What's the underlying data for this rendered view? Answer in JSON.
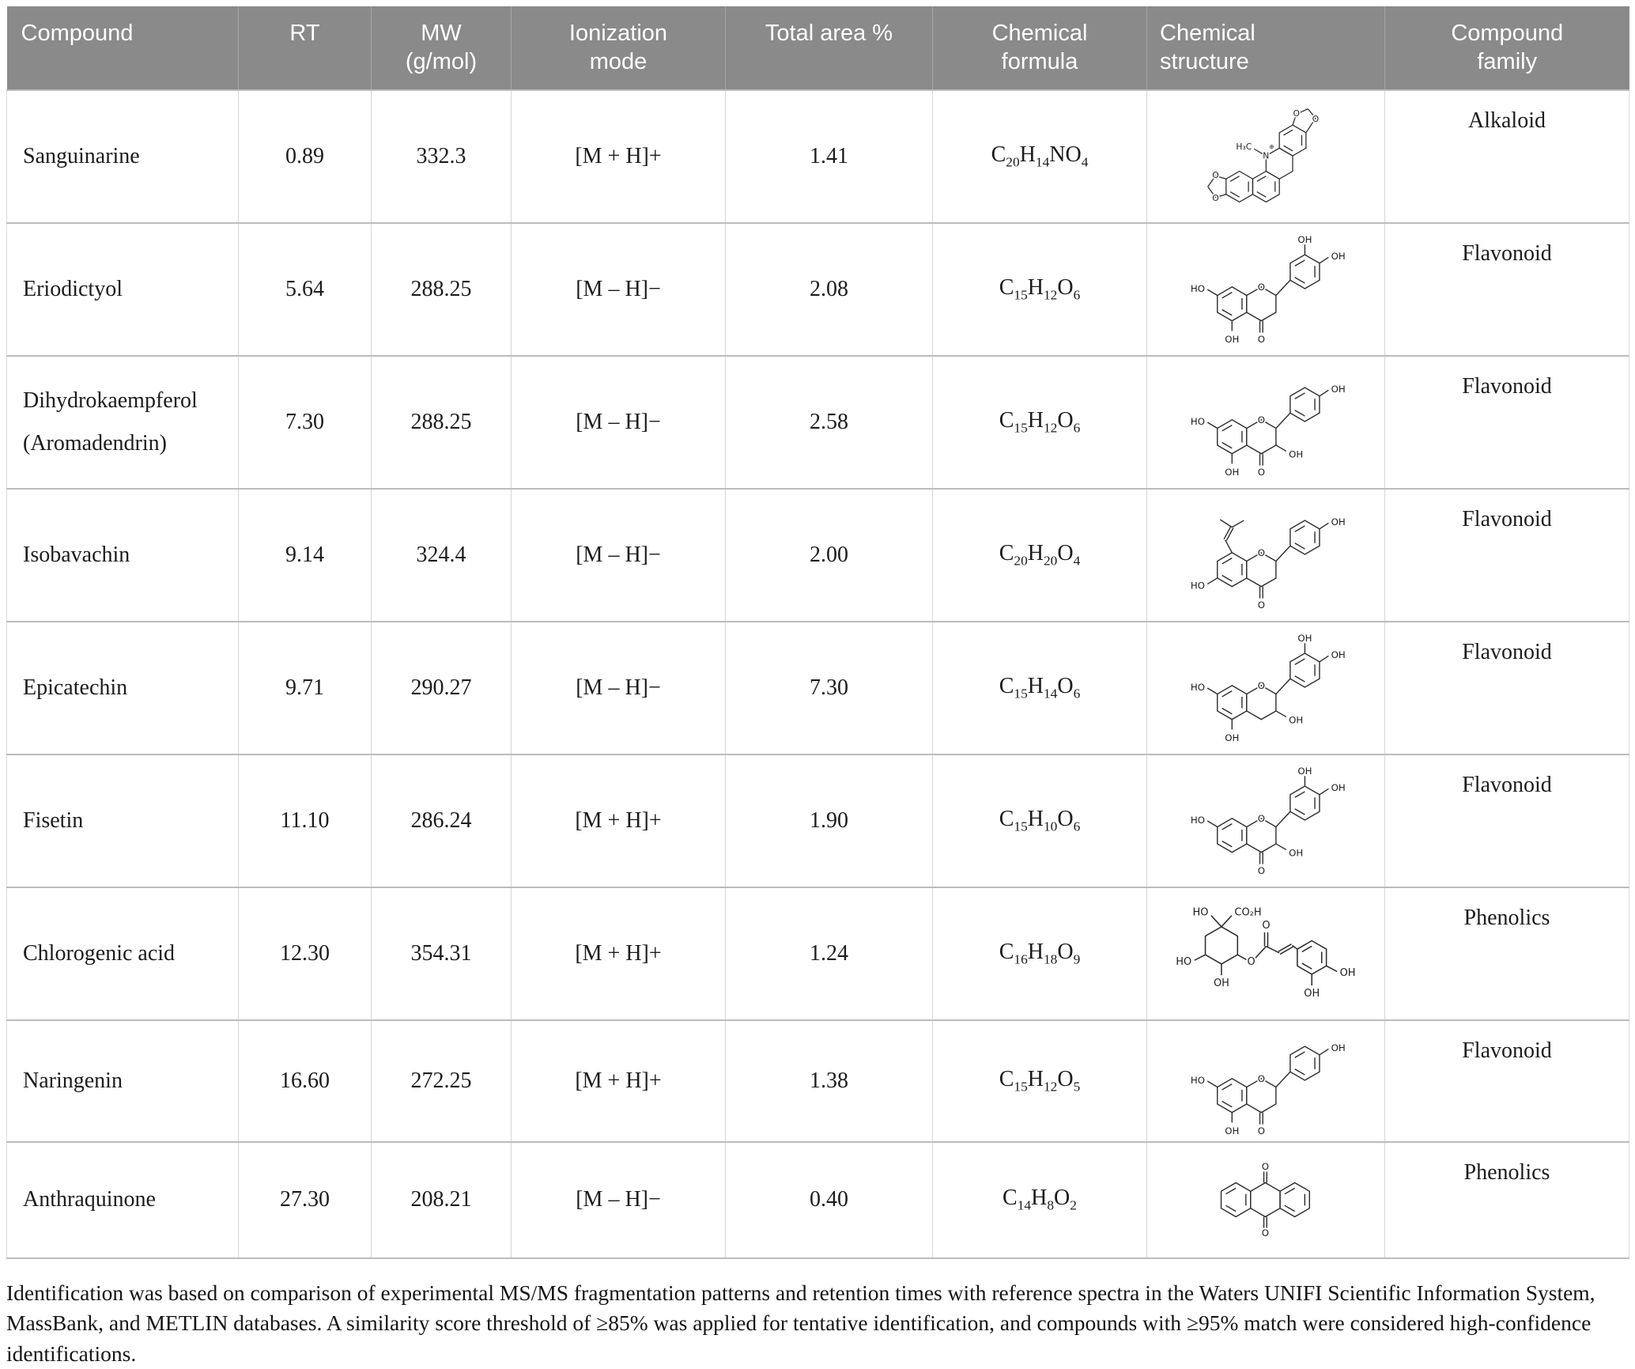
{
  "table": {
    "headers": [
      "Compound",
      "RT",
      "MW (g/mol)",
      "Ionization mode",
      "Total area %",
      "Chemical formula",
      "Chemical structure",
      "Compound family"
    ],
    "rows": [
      {
        "compound": "Sanguinarine",
        "rt": "0.89",
        "mw": "332.3",
        "ionization": "[M + H]+",
        "total_area": "1.41",
        "formula": "C20H14NO4",
        "structure": "sanguinarine",
        "structure_alt": "sanguinarine-structure",
        "family": "Alkaloid"
      },
      {
        "compound": "Eriodictyol",
        "rt": "5.64",
        "mw": "288.25",
        "ionization": "[M – H]−",
        "total_area": "2.08",
        "formula": "C15H12O6",
        "structure": "eriodictyol",
        "structure_alt": "eriodictyol-structure",
        "family": "Flavonoid"
      },
      {
        "compound": "Dihydrokaempferol (Aromadendrin)",
        "rt": "7.30",
        "mw": "288.25",
        "ionization": "[M – H]−",
        "total_area": "2.58",
        "formula": "C15H12O6",
        "structure": "dihydrokaempferol",
        "structure_alt": "dihydrokaempferol-structure",
        "family": "Flavonoid"
      },
      {
        "compound": "Isobavachin",
        "rt": "9.14",
        "mw": "324.4",
        "ionization": "[M – H]−",
        "total_area": "2.00",
        "formula": "C20H20O4",
        "structure": "isobavachin",
        "structure_alt": "isobavachin-structure",
        "family": "Flavonoid"
      },
      {
        "compound": "Epicatechin",
        "rt": "9.71",
        "mw": "290.27",
        "ionization": "[M – H]−",
        "total_area": "7.30",
        "formula": "C15H14O6",
        "structure": "epicatechin",
        "structure_alt": "epicatechin-structure",
        "family": "Flavonoid"
      },
      {
        "compound": "Fisetin",
        "rt": "11.10",
        "mw": "286.24",
        "ionization": "[M + H]+",
        "total_area": "1.90",
        "formula": "C15H10O6",
        "structure": "fisetin",
        "structure_alt": "fisetin-structure",
        "family": "Flavonoid"
      },
      {
        "compound": "Chlorogenic acid",
        "rt": "12.30",
        "mw": "354.31",
        "ionization": "[M + H]+",
        "total_area": "1.24",
        "formula": "C16H18O9",
        "structure": "chlorogenic",
        "structure_alt": "chlorogenic-acid-structure",
        "family": "Phenolics"
      },
      {
        "compound": "Naringenin",
        "rt": "16.60",
        "mw": "272.25",
        "ionization": "[M + H]+",
        "total_area": "1.38",
        "formula": "C15H12O5",
        "structure": "naringenin",
        "structure_alt": "naringenin-structure",
        "family": "Flavonoid"
      },
      {
        "compound": "Anthraquinone",
        "rt": "27.30",
        "mw": "208.21",
        "ionization": "[M – H]−",
        "total_area": "0.40",
        "formula": "C14H8O2",
        "structure": "anthraquinone",
        "structure_alt": "anthraquinone-structure",
        "family": "Phenolics"
      }
    ]
  },
  "footnote": "Identification was based on comparison of experimental MS/MS fragmentation patterns and retention times with reference spectra in the Waters UNIFI Scientific Information System, MassBank, and METLIN databases. A similarity score threshold of ≥85% was applied for tentative identification, and compounds with ≥95% match were considered high-confidence identifications."
}
